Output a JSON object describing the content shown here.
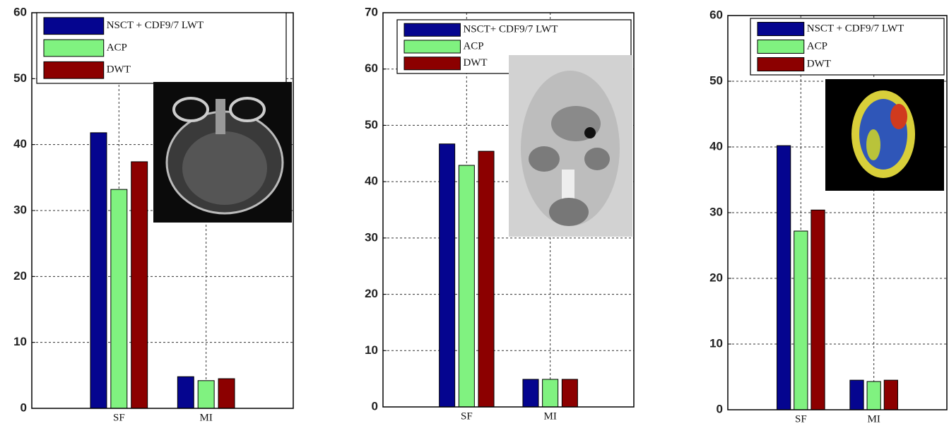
{
  "chart_data": [
    {
      "type": "bar",
      "categories": [
        "SF",
        "MI"
      ],
      "series": [
        {
          "name": "NSCT + CDF9/7 LWT",
          "color": "#05058f",
          "values": [
            41.8,
            4.8
          ]
        },
        {
          "name": "ACP",
          "color": "#80f280",
          "values": [
            33.2,
            4.2
          ]
        },
        {
          "name": "DWT",
          "color": "#8c0000",
          "values": [
            37.4,
            4.5
          ]
        }
      ],
      "ylim": [
        0,
        60
      ],
      "yticks": [
        0,
        10,
        20,
        30,
        40,
        50,
        60
      ],
      "grid": true
    },
    {
      "type": "bar",
      "categories": [
        "SF",
        "MI"
      ],
      "series": [
        {
          "name": "NSCT+ CDF9/7 LWT",
          "color": "#05058f",
          "values": [
            46.7,
            4.9
          ]
        },
        {
          "name": "ACP",
          "color": "#80f280",
          "values": [
            42.9,
            4.9
          ]
        },
        {
          "name": "DWT",
          "color": "#8c0000",
          "values": [
            45.4,
            4.9
          ]
        }
      ],
      "ylim": [
        0,
        70
      ],
      "yticks": [
        0,
        10,
        20,
        30,
        40,
        50,
        60,
        70
      ],
      "grid": true
    },
    {
      "type": "bar",
      "categories": [
        "SF",
        "MI"
      ],
      "series": [
        {
          "name": "NSCT + CDF9/7  LWT",
          "color": "#05058f",
          "values": [
            40.2,
            4.5
          ]
        },
        {
          "name": "ACP",
          "color": "#80f280",
          "values": [
            27.2,
            4.3
          ]
        },
        {
          "name": "DWT",
          "color": "#8c0000",
          "values": [
            30.4,
            4.5
          ]
        }
      ],
      "ylim": [
        0,
        60
      ],
      "yticks": [
        0,
        10,
        20,
        30,
        40,
        50,
        60
      ],
      "grid": true
    }
  ]
}
